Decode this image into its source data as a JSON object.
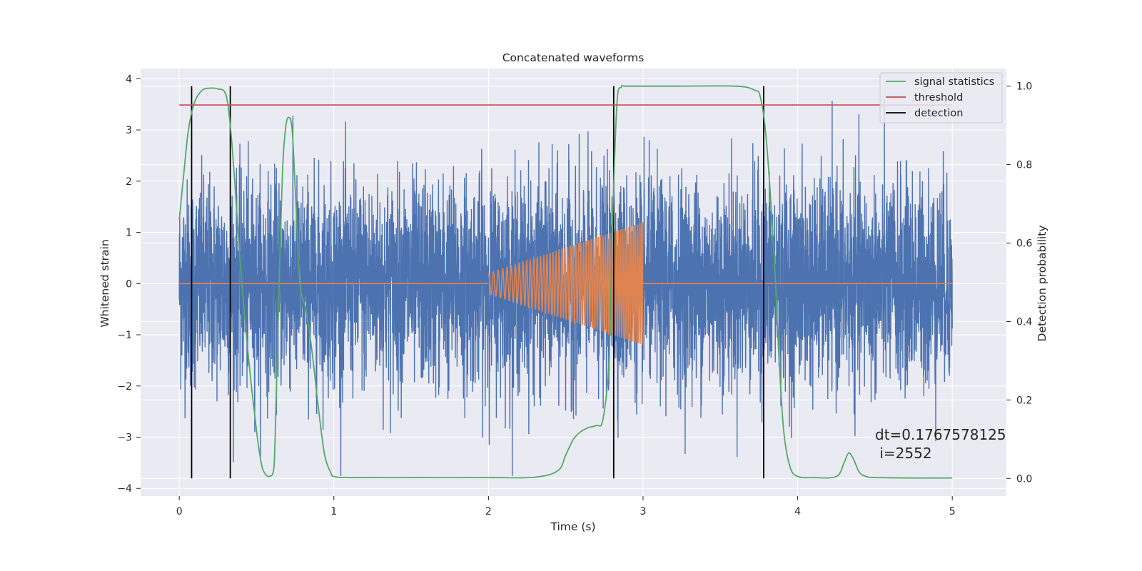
{
  "chart_data": {
    "type": "line",
    "title": "Concatenated waveforms",
    "xlabel": "Time (s)",
    "ylabel_left": "Whitened strain",
    "ylabel_right": "Detection probability",
    "xlim": [
      -0.25,
      5.35
    ],
    "ylim_left": [
      -4.15,
      4.2
    ],
    "ylim_right": [
      -0.045,
      1.045
    ],
    "xticks": [
      0,
      1,
      2,
      3,
      4,
      5
    ],
    "xtick_labels": [
      "0",
      "1",
      "2",
      "3",
      "4",
      "5"
    ],
    "yticks_left": [
      -4,
      -3,
      -2,
      -1,
      0,
      1,
      2,
      3,
      4
    ],
    "ytick_labels_left": [
      "−4",
      "−3",
      "−2",
      "−1",
      "0",
      "1",
      "2",
      "3",
      "4"
    ],
    "yticks_right": [
      0.0,
      0.2,
      0.4,
      0.6,
      0.8,
      1.0
    ],
    "ytick_labels_right": [
      "0.0",
      "0.2",
      "0.4",
      "0.6",
      "0.8",
      "1.0"
    ],
    "grid": true,
    "legend_position": "top-right",
    "legend": [
      {
        "label": "signal statistics",
        "color": "#55a868"
      },
      {
        "label": "threshold",
        "color": "#c44e52"
      },
      {
        "label": "detection",
        "color": "#000000"
      }
    ],
    "series": [
      {
        "role": "whitened_strain",
        "axis": "left",
        "color": "#4c72b0",
        "x_range": [
          0,
          5
        ],
        "approx_amplitude": 1.0,
        "peak_max": 3.85,
        "peak_min": -3.75
      },
      {
        "role": "injected_waveform",
        "axis": "left",
        "color": "#dd8452",
        "segments": [
          {
            "x": [
              0,
              2
            ],
            "y": 0
          },
          {
            "x": [
              2,
              3
            ],
            "amplitude_start": 0.2,
            "amplitude_end": 1.2,
            "cycles": 55
          },
          {
            "x": [
              3,
              5
            ],
            "y": 0
          }
        ]
      },
      {
        "role": "signal_statistics",
        "axis": "right",
        "color": "#55a868",
        "x": [
          0.0,
          0.03,
          0.06,
          0.1,
          0.15,
          0.2,
          0.25,
          0.3,
          0.33,
          0.36,
          0.4,
          0.45,
          0.5,
          0.53,
          0.55,
          0.58,
          0.61,
          0.62,
          0.63,
          0.65,
          0.67,
          0.69,
          0.71,
          0.73,
          0.75,
          0.78,
          0.82,
          0.86,
          0.9,
          0.94,
          0.98,
          1.0,
          1.1,
          1.5,
          2.0,
          2.3,
          2.45,
          2.5,
          2.55,
          2.6,
          2.65,
          2.7,
          2.74,
          2.78,
          2.8,
          2.83,
          2.86,
          2.9,
          3.2,
          3.6,
          3.72,
          3.76,
          3.8,
          3.85,
          3.88,
          3.91,
          3.95,
          4.0,
          4.1,
          4.25,
          4.3,
          4.33,
          4.36,
          4.4,
          4.45,
          4.5,
          4.7,
          5.0
        ],
        "y": [
          0.66,
          0.78,
          0.89,
          0.96,
          0.99,
          0.995,
          0.993,
          0.98,
          0.9,
          0.75,
          0.52,
          0.3,
          0.12,
          0.04,
          0.015,
          0.005,
          0.02,
          0.1,
          0.25,
          0.55,
          0.8,
          0.9,
          0.92,
          0.89,
          0.74,
          0.5,
          0.43,
          0.32,
          0.18,
          0.06,
          0.015,
          0.005,
          0.002,
          0.002,
          0.002,
          0.003,
          0.02,
          0.06,
          0.1,
          0.12,
          0.13,
          0.135,
          0.15,
          0.3,
          0.62,
          0.95,
          0.998,
          1.0,
          1.0,
          1.0,
          0.99,
          0.97,
          0.85,
          0.55,
          0.3,
          0.12,
          0.03,
          0.005,
          0.002,
          0.005,
          0.04,
          0.065,
          0.05,
          0.015,
          0.004,
          0.002,
          0.001,
          0.001
        ]
      },
      {
        "role": "threshold",
        "axis": "right",
        "color": "#c44e52",
        "x": [
          0,
          5
        ],
        "y": 0.952
      }
    ],
    "detections": [
      0.08,
      0.33,
      2.81,
      3.78
    ],
    "detection_y_range": [
      0.0,
      1.0
    ]
  },
  "annotation": {
    "line1": "dt=0.1767578125",
    "line2": " i=2552"
  }
}
